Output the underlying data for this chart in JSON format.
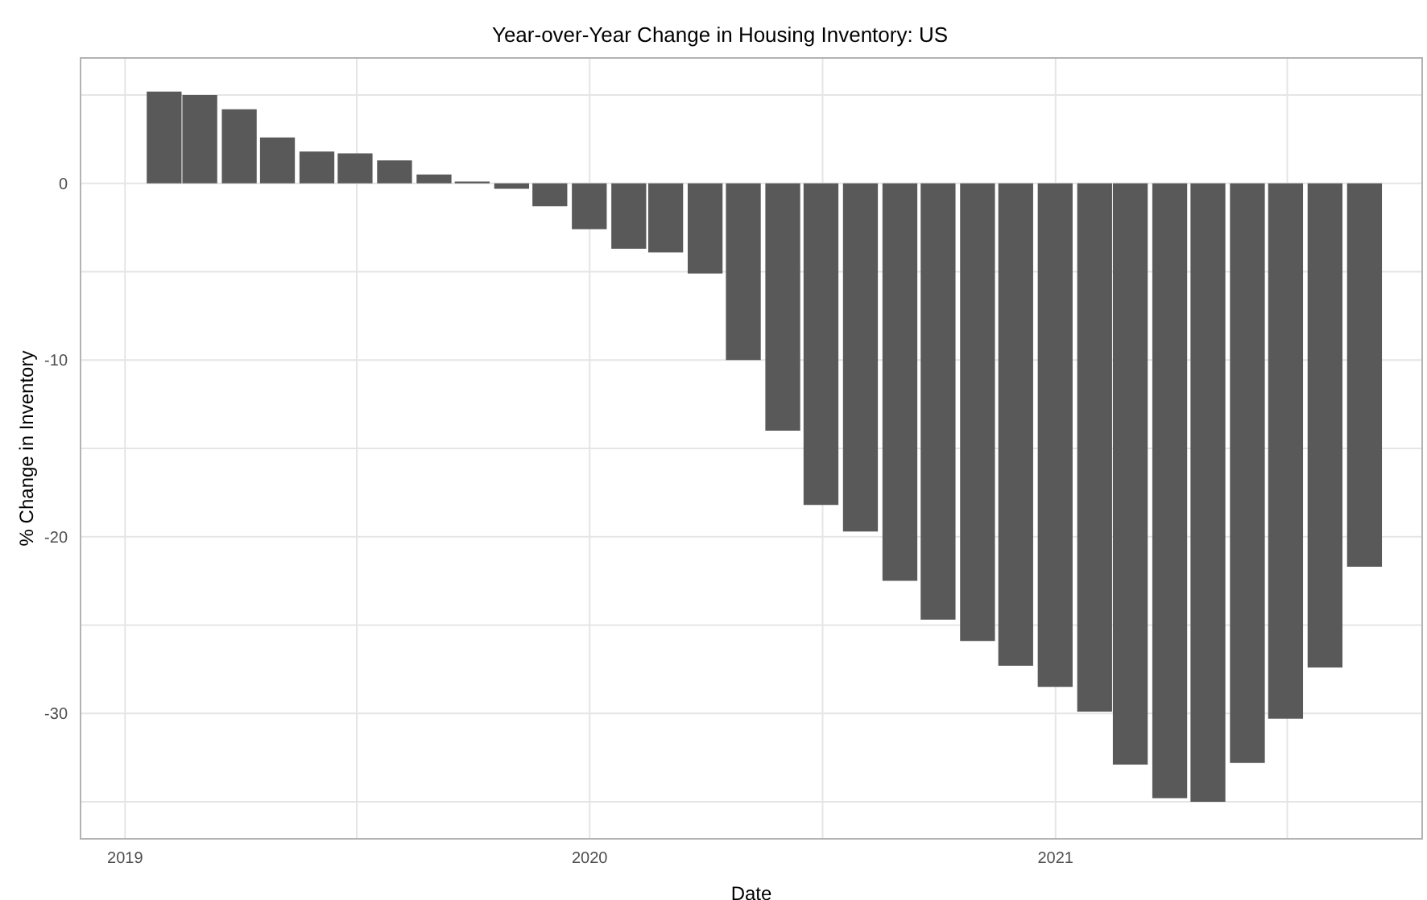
{
  "chart_data": {
    "type": "bar",
    "title": "Year-over-Year Change in Housing Inventory: US",
    "xlabel": "Date",
    "ylabel": "% Change in Inventory",
    "x": [
      "2019-02",
      "2019-03",
      "2019-04",
      "2019-05",
      "2019-06",
      "2019-07",
      "2019-08",
      "2019-09",
      "2019-10",
      "2019-11",
      "2019-12",
      "2020-01",
      "2020-02",
      "2020-03",
      "2020-04",
      "2020-05",
      "2020-06",
      "2020-07",
      "2020-08",
      "2020-09",
      "2020-10",
      "2020-11",
      "2020-12",
      "2021-01",
      "2021-02",
      "2021-03",
      "2021-04",
      "2021-05",
      "2021-06",
      "2021-07",
      "2021-08",
      "2021-09"
    ],
    "series": [
      {
        "color": "#595959",
        "values": [
          5.2,
          5.0,
          4.2,
          2.6,
          1.8,
          1.7,
          1.3,
          0.5,
          0.1,
          -0.3,
          -1.3,
          -2.6,
          -3.7,
          -3.9,
          -5.1,
          -10,
          -14,
          -18.2,
          -19.7,
          -22.5,
          -24.7,
          -25.9,
          -27.3,
          -28.5,
          -29.9,
          -32.9,
          -34.8,
          -35,
          -32.8,
          -30.3,
          -27.4,
          -21.7
        ]
      }
    ],
    "xlim": [
      "2018-11-27",
      "2021-10-16"
    ],
    "xticks": [
      {
        "value": "2019-01-01",
        "label": "2019"
      },
      {
        "value": "2019-07-02",
        "label": null
      },
      {
        "value": "2020-01-01",
        "label": "2020"
      },
      {
        "value": "2020-07-02",
        "label": null
      },
      {
        "value": "2021-01-01",
        "label": "2021"
      },
      {
        "value": "2021-07-02",
        "label": null
      }
    ],
    "ylim": [
      -37.1,
      7.1
    ],
    "yticks": [
      {
        "value": -35,
        "label": null
      },
      -30,
      {
        "value": -25,
        "label": null
      },
      -20,
      {
        "value": -15,
        "label": null
      },
      -10,
      {
        "value": -5,
        "label": null
      },
      0,
      {
        "value": 5,
        "label": null
      }
    ],
    "grid": true
  }
}
